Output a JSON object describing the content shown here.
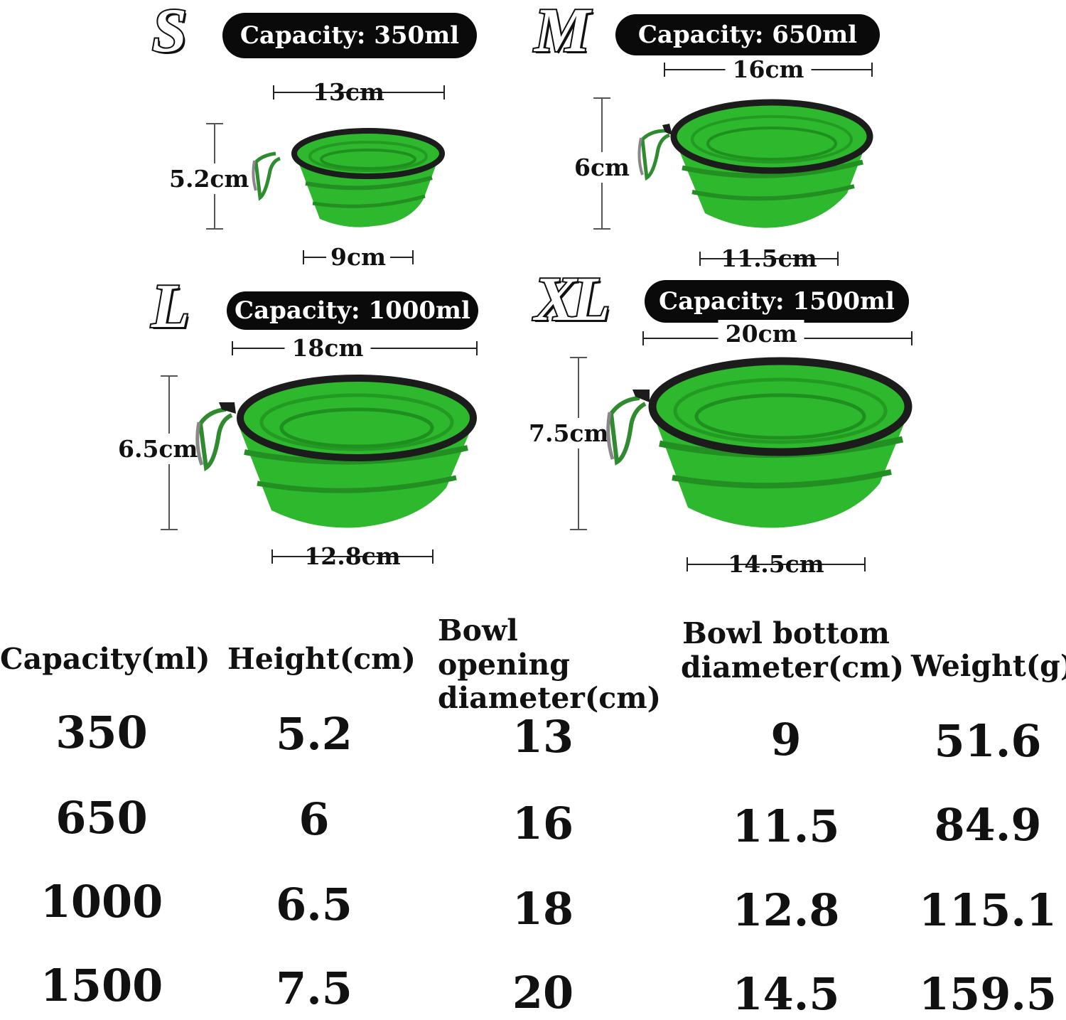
{
  "sizes": [
    {
      "letter": "S",
      "capacity_label": "Capacity: 350ml",
      "opening": "13cm",
      "height": "5.2cm",
      "bottom": "9cm"
    },
    {
      "letter": "M",
      "capacity_label": "Capacity: 650ml",
      "opening": "16cm",
      "height": "6cm",
      "bottom": "11.5cm"
    },
    {
      "letter": "L",
      "capacity_label": "Capacity: 1000ml",
      "opening": "18cm",
      "height": "6.5cm",
      "bottom": "12.8cm"
    },
    {
      "letter": "XL",
      "capacity_label": "Capacity: 1500ml",
      "opening": "20cm",
      "height": "7.5cm",
      "bottom": "14.5cm"
    }
  ],
  "table": {
    "headers": [
      "Capacity(ml)",
      "Height(cm)",
      "Bowl opening\ndiameter(cm)",
      "Bowl bottom\ndiameter(cm)",
      "Weight(g)"
    ],
    "rows": [
      [
        "350",
        "5.2",
        "13",
        "9",
        "51.6"
      ],
      [
        "650",
        "6",
        "16",
        "11.5",
        "84.9"
      ],
      [
        "1000",
        "6.5",
        "18",
        "12.8",
        "115.1"
      ],
      [
        "1500",
        "7.5",
        "20",
        "14.5",
        "159.5"
      ]
    ]
  },
  "colors": {
    "bowl_green": "#2db82d",
    "bowl_rim": "#1c1c1c",
    "pill_bg": "#0a0a0a",
    "pill_text": "#ffffff"
  }
}
